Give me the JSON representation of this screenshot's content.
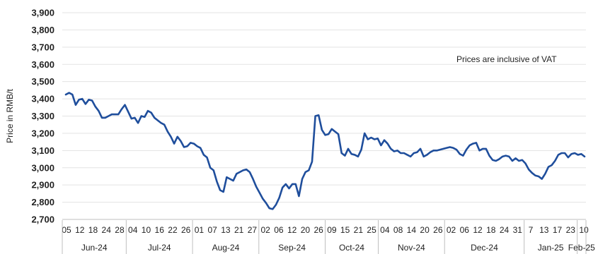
{
  "chart_data": {
    "type": "line",
    "title": "",
    "ylabel": "Price in RMB/t",
    "note": "Prices are inclusive of VAT",
    "ylim": [
      2700,
      3900
    ],
    "yticks": [
      "2,700",
      "2,800",
      "2,900",
      "3,000",
      "3,100",
      "3,200",
      "3,300",
      "3,400",
      "3,500",
      "3,600",
      "3,700",
      "3,800",
      "3,900"
    ],
    "grid": "horizontal",
    "color": "#1f4e9c",
    "day_labels": [
      "05",
      "12",
      "18",
      "24",
      "28",
      "04",
      "10",
      "16",
      "22",
      "26",
      "01",
      "07",
      "13",
      "21",
      "27",
      "02",
      "06",
      "12",
      "20",
      "26",
      "09",
      "15",
      "21",
      "25",
      "04",
      "08",
      "14",
      "20",
      "26",
      "02",
      "06",
      "12",
      "18",
      "24",
      "31",
      "7",
      "13",
      "17",
      "23",
      "10"
    ],
    "months": [
      {
        "label": "Jun-24",
        "start": 0,
        "end": 5
      },
      {
        "label": "Jul-24",
        "start": 5,
        "end": 10
      },
      {
        "label": "Aug-24",
        "start": 10,
        "end": 15
      },
      {
        "label": "Sep-24",
        "start": 15,
        "end": 20
      },
      {
        "label": "Oct-24",
        "start": 20,
        "end": 24
      },
      {
        "label": "Nov-24",
        "start": 24,
        "end": 29
      },
      {
        "label": "Dec-24",
        "start": 29,
        "end": 35
      },
      {
        "label": "Jan-25",
        "start": 35,
        "end": 39
      },
      {
        "label": "Feb-25",
        "start": 39,
        "end": 40
      }
    ],
    "series": [
      {
        "values": [
          3425,
          3435,
          3425,
          3365,
          3395,
          3400,
          3370,
          3395,
          3390,
          3355,
          3330,
          3290,
          3290,
          3300,
          3310,
          3310,
          3310,
          3340,
          3365,
          3325,
          3285,
          3290,
          3260,
          3300,
          3295,
          3330,
          3320,
          3290,
          3275,
          3260,
          3250,
          3210,
          3180,
          3140,
          3180,
          3155,
          3120,
          3125,
          3145,
          3140,
          3125,
          3115,
          3075,
          3060,
          3000,
          2985,
          2920,
          2870,
          2860,
          2945,
          2935,
          2925,
          2965,
          2975,
          2985,
          2990,
          2975,
          2935,
          2890,
          2855,
          2820,
          2795,
          2765,
          2760,
          2785,
          2825,
          2885,
          2905,
          2880,
          2905,
          2905,
          2835,
          2935,
          2975,
          2985,
          3035,
          3300,
          3305,
          3220,
          3190,
          3195,
          3225,
          3210,
          3195,
          3085,
          3070,
          3110,
          3080,
          3075,
          3065,
          3105,
          3200,
          3165,
          3175,
          3165,
          3170,
          3130,
          3160,
          3140,
          3110,
          3095,
          3100,
          3085,
          3085,
          3075,
          3065,
          3085,
          3090,
          3110,
          3065,
          3075,
          3090,
          3100,
          3100,
          3105,
          3110,
          3115,
          3120,
          3115,
          3105,
          3080,
          3070,
          3105,
          3130,
          3140,
          3145,
          3100,
          3110,
          3110,
          3070,
          3045,
          3040,
          3050,
          3065,
          3070,
          3065,
          3040,
          3055,
          3040,
          3045,
          3025,
          2990,
          2970,
          2955,
          2950,
          2935,
          2965,
          3005,
          3015,
          3040,
          3075,
          3085,
          3085,
          3060,
          3080,
          3085,
          3075,
          3080,
          3065
        ]
      }
    ]
  }
}
